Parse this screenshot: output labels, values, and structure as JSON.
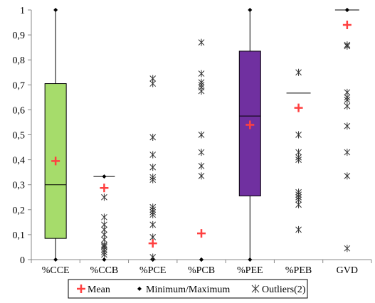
{
  "chart_data": {
    "type": "boxplot",
    "title": "",
    "xlabel": "",
    "ylabel": "",
    "ylim": [
      0,
      1
    ],
    "yticks": [
      {
        "v": 0,
        "label": "0"
      },
      {
        "v": 0.1,
        "label": "0,1"
      },
      {
        "v": 0.2,
        "label": "0,2"
      },
      {
        "v": 0.3,
        "label": "0,3"
      },
      {
        "v": 0.4,
        "label": "0,4"
      },
      {
        "v": 0.5,
        "label": "0,5"
      },
      {
        "v": 0.6,
        "label": "0,6"
      },
      {
        "v": 0.7,
        "label": "0,7"
      },
      {
        "v": 0.8,
        "label": "0,8"
      },
      {
        "v": 0.9,
        "label": "0,9"
      },
      {
        "v": 1,
        "label": "1"
      }
    ],
    "grid": false,
    "legend_position": "bottom",
    "categories": [
      "%CCE",
      "%CCB",
      "%PCE",
      "%PCB",
      "%PEE",
      "%PEB",
      "GVD"
    ],
    "boxes": [
      {
        "name": "%CCE",
        "q1": 0.085,
        "median": 0.3,
        "q3": 0.705,
        "min": 0,
        "max": 1,
        "mean": 0.395,
        "color": "#a6dc6b",
        "outliers": []
      },
      {
        "name": "%CCB",
        "q1": null,
        "median": null,
        "q3": null,
        "min": 0,
        "max": 0.333,
        "mean": 0.287,
        "color": null,
        "outliers": [
          0.25,
          0.17,
          0.14,
          0.12,
          0.1,
          0.08,
          0.06,
          0.055,
          0.05,
          0.04,
          0.03,
          0.02
        ]
      },
      {
        "name": "%PCE",
        "q1": null,
        "median": null,
        "q3": null,
        "min": 0,
        "max": 0,
        "mean": 0.065,
        "color": null,
        "outliers": [
          0.725,
          0.705,
          0.49,
          0.42,
          0.37,
          0.33,
          0.32,
          0.21,
          0.2,
          0.19,
          0.18,
          0.14,
          0.09,
          0.01
        ]
      },
      {
        "name": "%PCB",
        "q1": null,
        "median": null,
        "q3": null,
        "min": 0,
        "max": 0,
        "mean": 0.105,
        "color": null,
        "outliers": [
          0.87,
          0.745,
          0.71,
          0.7,
          0.69,
          0.675,
          0.5,
          0.43,
          0.375,
          0.335
        ]
      },
      {
        "name": "%PEE",
        "q1": 0.255,
        "median": 0.575,
        "q3": 0.835,
        "min": 0,
        "max": 1,
        "mean": 0.54,
        "color": "#7030a0",
        "outliers": []
      },
      {
        "name": "%PEB",
        "q1": null,
        "median": 0.667,
        "q3": null,
        "min": null,
        "max": null,
        "mean": 0.608,
        "color": null,
        "outliers": [
          0.75,
          0.5,
          0.43,
          0.41,
          0.4,
          0.27,
          0.26,
          0.25,
          0.24,
          0.22,
          0.12
        ]
      },
      {
        "name": "GVD",
        "q1": null,
        "median": 1,
        "q3": null,
        "min": 1,
        "max": 1,
        "mean": 0.94,
        "color": null,
        "outliers": [
          0.86,
          0.855,
          0.67,
          0.65,
          0.64,
          0.615,
          0.535,
          0.43,
          0.335,
          0.045
        ]
      }
    ],
    "legend": [
      {
        "symbol": "plus",
        "label": "Mean",
        "color": "#ff4040"
      },
      {
        "symbol": "diamond",
        "label": "Minimum/Maximum",
        "color": "#000000"
      },
      {
        "symbol": "asterisk",
        "label": "Outliers(2)",
        "color": "#000000"
      }
    ]
  }
}
